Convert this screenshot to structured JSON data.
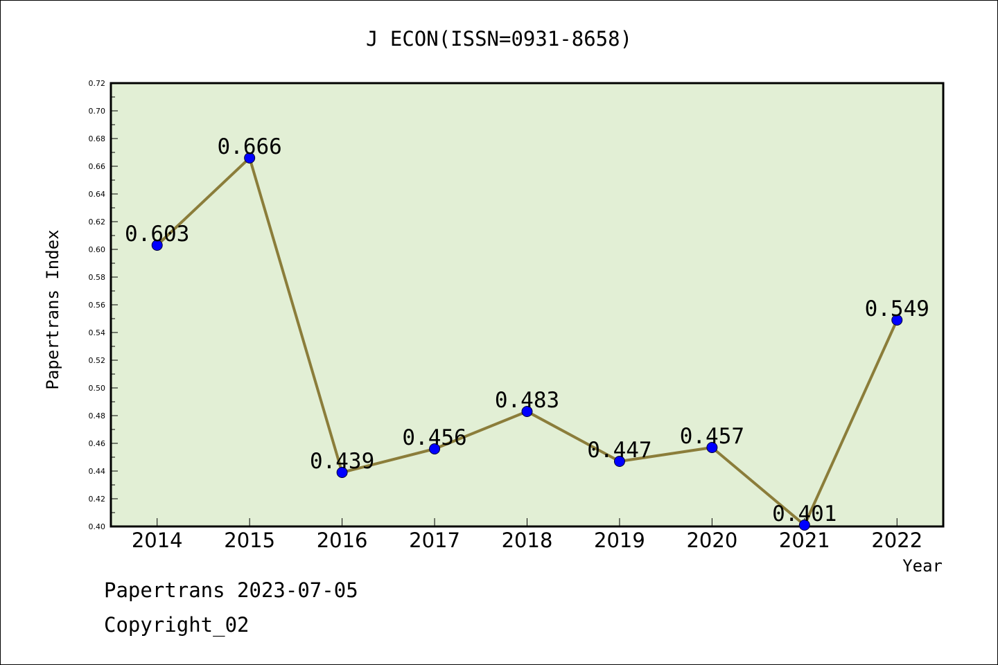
{
  "chart_data": {
    "type": "line",
    "title": "J ECON(ISSN=0931-8658)",
    "xlabel": "Year",
    "ylabel": "Papertrans Index",
    "categories": [
      "2014",
      "2015",
      "2016",
      "2017",
      "2018",
      "2019",
      "2020",
      "2021",
      "2022"
    ],
    "series": [
      {
        "values": [
          0.603,
          0.666,
          0.439,
          0.456,
          0.483,
          0.447,
          0.457,
          0.401,
          0.549
        ],
        "data_labels": [
          "0.603",
          "0.666",
          "0.439",
          "0.456",
          "0.483",
          "0.447",
          "0.457",
          "0.401",
          "0.549"
        ]
      }
    ],
    "ylim": [
      0.4,
      0.72
    ],
    "yticks": [
      "0.40",
      "0.42",
      "0.44",
      "0.46",
      "0.48",
      "0.50",
      "0.52",
      "0.54",
      "0.56",
      "0.58",
      "0.60",
      "0.62",
      "0.64",
      "0.66",
      "0.68",
      "0.70",
      "0.72"
    ],
    "grid": false,
    "colors": {
      "plot_background": "#e2efd5",
      "line": "#8b7d3a",
      "marker": "#0000ff"
    }
  },
  "footer": {
    "line1": "Papertrans 2023-07-05",
    "line2": "Copyright_02"
  }
}
